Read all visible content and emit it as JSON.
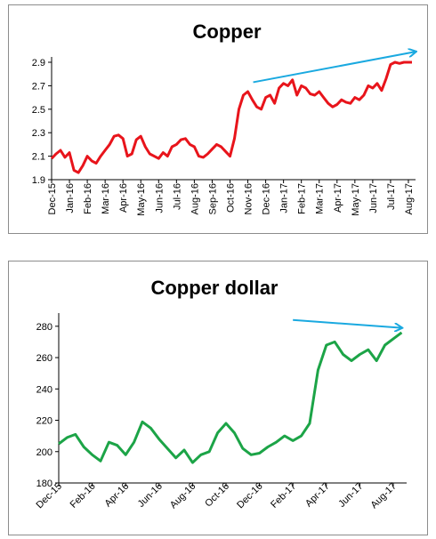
{
  "chart_data": [
    {
      "type": "line",
      "title": "Copper",
      "xlabel": "",
      "ylabel": "",
      "ylim": [
        1.9,
        2.9
      ],
      "yticks": [
        "1.9",
        "2.1",
        "2.3",
        "2.5",
        "2.7",
        "2.9"
      ],
      "categories": [
        "Dec-15",
        "Jan-16",
        "Feb-16",
        "Mar-16",
        "Apr-16",
        "May-16",
        "Jun-16",
        "Jul-16",
        "Aug-16",
        "Sep-16",
        "Oct-16",
        "Nov-16",
        "Dec-16",
        "Jan-17",
        "Feb-17",
        "Mar-17",
        "Apr-17",
        "May-17",
        "Jun-17",
        "Jul-17",
        "Aug-17"
      ],
      "grid": false,
      "legend": "none",
      "series": [
        {
          "color": "#e8141b",
          "x": [
            0,
            0.25,
            0.5,
            0.75,
            1,
            1.25,
            1.5,
            1.75,
            2,
            2.25,
            2.5,
            2.75,
            3,
            3.25,
            3.5,
            3.75,
            4,
            4.25,
            4.5,
            4.75,
            5,
            5.25,
            5.5,
            5.75,
            6,
            6.25,
            6.5,
            6.75,
            7,
            7.25,
            7.5,
            7.75,
            8,
            8.25,
            8.5,
            8.75,
            9,
            9.25,
            9.5,
            9.75,
            10,
            10.25,
            10.5,
            10.75,
            11,
            11.25,
            11.5,
            11.75,
            12,
            12.25,
            12.5,
            12.75,
            13,
            13.25,
            13.5,
            13.75,
            14,
            14.25,
            14.5,
            14.75,
            15,
            15.25,
            15.5,
            15.75,
            16,
            16.25,
            16.5,
            16.75,
            17,
            17.25,
            17.5,
            17.75,
            18,
            18.25,
            18.5,
            18.75,
            19,
            19.25,
            19.5,
            19.75,
            20,
            20.2
          ],
          "values": [
            2.08,
            2.12,
            2.15,
            2.09,
            2.13,
            1.98,
            1.96,
            2.02,
            2.1,
            2.06,
            2.04,
            2.1,
            2.15,
            2.2,
            2.27,
            2.28,
            2.25,
            2.1,
            2.12,
            2.24,
            2.27,
            2.18,
            2.12,
            2.1,
            2.08,
            2.13,
            2.1,
            2.18,
            2.2,
            2.24,
            2.25,
            2.2,
            2.18,
            2.1,
            2.09,
            2.12,
            2.16,
            2.2,
            2.18,
            2.14,
            2.1,
            2.25,
            2.5,
            2.62,
            2.65,
            2.58,
            2.52,
            2.5,
            2.6,
            2.62,
            2.55,
            2.68,
            2.72,
            2.7,
            2.75,
            2.62,
            2.7,
            2.68,
            2.63,
            2.62,
            2.65,
            2.6,
            2.55,
            2.52,
            2.54,
            2.58,
            2.56,
            2.55,
            2.6,
            2.58,
            2.62,
            2.7,
            2.68,
            2.72,
            2.66,
            2.76,
            2.88,
            2.9,
            2.89,
            2.9,
            2.9,
            2.9
          ]
        }
      ],
      "annotations": [
        {
          "type": "arrow",
          "color": "#1aa9e0",
          "from": {
            "x": 11.3,
            "y": 2.73
          },
          "to": {
            "x": 20.4,
            "y": 2.99
          }
        }
      ]
    },
    {
      "type": "line",
      "title": "Copper dollar",
      "xlabel": "",
      "ylabel": "",
      "ylim": [
        180,
        285
      ],
      "yticks": [
        "180",
        "200",
        "220",
        "240",
        "260",
        "280"
      ],
      "categories": [
        "Dec-15",
        "Feb-16",
        "Apr-16",
        "Jun-16",
        "Aug-16",
        "Oct-16",
        "Dec-16",
        "Feb-17",
        "Apr-17",
        "Jun-17",
        "Aug-17"
      ],
      "grid": false,
      "legend": "none",
      "series": [
        {
          "color": "#1ca447",
          "x": [
            0,
            0.25,
            0.5,
            0.75,
            1,
            1.25,
            1.5,
            1.75,
            2,
            2.25,
            2.5,
            2.75,
            3,
            3.25,
            3.5,
            3.75,
            4,
            4.25,
            4.5,
            4.75,
            5,
            5.25,
            5.5,
            5.75,
            6,
            6.25,
            6.5,
            6.75,
            7,
            7.25,
            7.5,
            7.75,
            8,
            8.25,
            8.5,
            8.75,
            9,
            9.25,
            9.5,
            9.75,
            10,
            10.25
          ],
          "values": [
            205,
            209,
            211,
            203,
            198,
            194,
            206,
            204,
            198,
            206,
            219,
            215,
            208,
            202,
            196,
            201,
            193,
            198,
            200,
            212,
            218,
            212,
            202,
            198,
            199,
            203,
            206,
            210,
            207,
            210,
            218,
            252,
            268,
            270,
            262,
            258,
            262,
            265,
            258,
            268,
            272,
            276
          ]
        }
      ],
      "annotations": [
        {
          "type": "arrow",
          "color": "#1aa9e0",
          "from": {
            "x": 7.0,
            "y": 284
          },
          "to": {
            "x": 10.25,
            "y": 279
          }
        }
      ]
    }
  ]
}
